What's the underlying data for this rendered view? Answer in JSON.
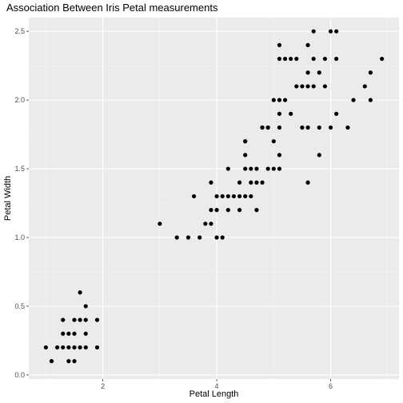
{
  "chart_data": {
    "type": "scatter",
    "title": "Association Between Iris Petal measurements",
    "xlabel": "Petal Length",
    "ylabel": "Petal Width",
    "xlim": [
      0.7,
      7.2
    ],
    "ylim": [
      -0.03,
      2.6
    ],
    "x_ticks": [
      2,
      4,
      6
    ],
    "x_tick_labels": [
      "2",
      "4",
      "6"
    ],
    "y_ticks": [
      0.0,
      0.5,
      1.0,
      1.5,
      2.0,
      2.5
    ],
    "y_tick_labels": [
      "0.0",
      "0.5",
      "1.0",
      "1.5",
      "2.0",
      "2.5"
    ],
    "grid": true,
    "panel_color": "#ebebeb",
    "point_color": "#000000",
    "points": [
      [
        1.0,
        0.2
      ],
      [
        1.1,
        0.1
      ],
      [
        1.2,
        0.2
      ],
      [
        1.3,
        0.2
      ],
      [
        1.3,
        0.3
      ],
      [
        1.3,
        0.4
      ],
      [
        1.4,
        0.1
      ],
      [
        1.4,
        0.2
      ],
      [
        1.4,
        0.3
      ],
      [
        1.5,
        0.1
      ],
      [
        1.5,
        0.2
      ],
      [
        1.5,
        0.3
      ],
      [
        1.5,
        0.4
      ],
      [
        1.6,
        0.2
      ],
      [
        1.6,
        0.4
      ],
      [
        1.6,
        0.6
      ],
      [
        1.7,
        0.2
      ],
      [
        1.7,
        0.3
      ],
      [
        1.7,
        0.4
      ],
      [
        1.7,
        0.5
      ],
      [
        1.9,
        0.2
      ],
      [
        1.9,
        0.4
      ],
      [
        3.0,
        1.1
      ],
      [
        3.3,
        1.0
      ],
      [
        3.5,
        1.0
      ],
      [
        3.6,
        1.3
      ],
      [
        3.7,
        1.0
      ],
      [
        3.8,
        1.1
      ],
      [
        3.9,
        1.1
      ],
      [
        3.9,
        1.2
      ],
      [
        3.9,
        1.4
      ],
      [
        4.0,
        1.0
      ],
      [
        4.0,
        1.2
      ],
      [
        4.0,
        1.3
      ],
      [
        4.1,
        1.0
      ],
      [
        4.1,
        1.3
      ],
      [
        4.2,
        1.2
      ],
      [
        4.2,
        1.3
      ],
      [
        4.2,
        1.5
      ],
      [
        4.3,
        1.3
      ],
      [
        4.4,
        1.2
      ],
      [
        4.4,
        1.3
      ],
      [
        4.4,
        1.4
      ],
      [
        4.5,
        1.3
      ],
      [
        4.5,
        1.5
      ],
      [
        4.5,
        1.6
      ],
      [
        4.5,
        1.7
      ],
      [
        4.6,
        1.3
      ],
      [
        4.6,
        1.4
      ],
      [
        4.6,
        1.5
      ],
      [
        4.7,
        1.2
      ],
      [
        4.7,
        1.4
      ],
      [
        4.7,
        1.5
      ],
      [
        4.8,
        1.4
      ],
      [
        4.8,
        1.8
      ],
      [
        4.9,
        1.5
      ],
      [
        4.9,
        1.8
      ],
      [
        5.0,
        1.7
      ],
      [
        5.1,
        1.6
      ],
      [
        4.5,
        1.7
      ],
      [
        4.8,
        1.8
      ],
      [
        4.9,
        1.8
      ],
      [
        5.0,
        1.5
      ],
      [
        5.0,
        2.0
      ],
      [
        5.1,
        1.5
      ],
      [
        5.1,
        1.8
      ],
      [
        5.1,
        1.9
      ],
      [
        5.1,
        2.0
      ],
      [
        5.1,
        2.3
      ],
      [
        5.1,
        2.4
      ],
      [
        5.2,
        2.0
      ],
      [
        5.2,
        2.3
      ],
      [
        5.3,
        1.9
      ],
      [
        5.3,
        2.3
      ],
      [
        5.4,
        2.1
      ],
      [
        5.4,
        2.3
      ],
      [
        5.5,
        1.8
      ],
      [
        5.5,
        2.1
      ],
      [
        5.6,
        1.4
      ],
      [
        5.6,
        1.8
      ],
      [
        5.6,
        2.1
      ],
      [
        5.6,
        2.2
      ],
      [
        5.6,
        2.4
      ],
      [
        5.7,
        2.1
      ],
      [
        5.7,
        2.3
      ],
      [
        5.7,
        2.5
      ],
      [
        5.8,
        1.6
      ],
      [
        5.8,
        1.8
      ],
      [
        5.8,
        2.2
      ],
      [
        5.9,
        2.1
      ],
      [
        5.9,
        2.3
      ],
      [
        6.0,
        1.8
      ],
      [
        6.0,
        2.5
      ],
      [
        6.1,
        1.9
      ],
      [
        6.1,
        2.3
      ],
      [
        6.1,
        2.5
      ],
      [
        6.3,
        1.8
      ],
      [
        6.4,
        2.0
      ],
      [
        6.6,
        2.1
      ],
      [
        6.7,
        2.0
      ],
      [
        6.7,
        2.2
      ],
      [
        6.9,
        2.3
      ]
    ]
  }
}
